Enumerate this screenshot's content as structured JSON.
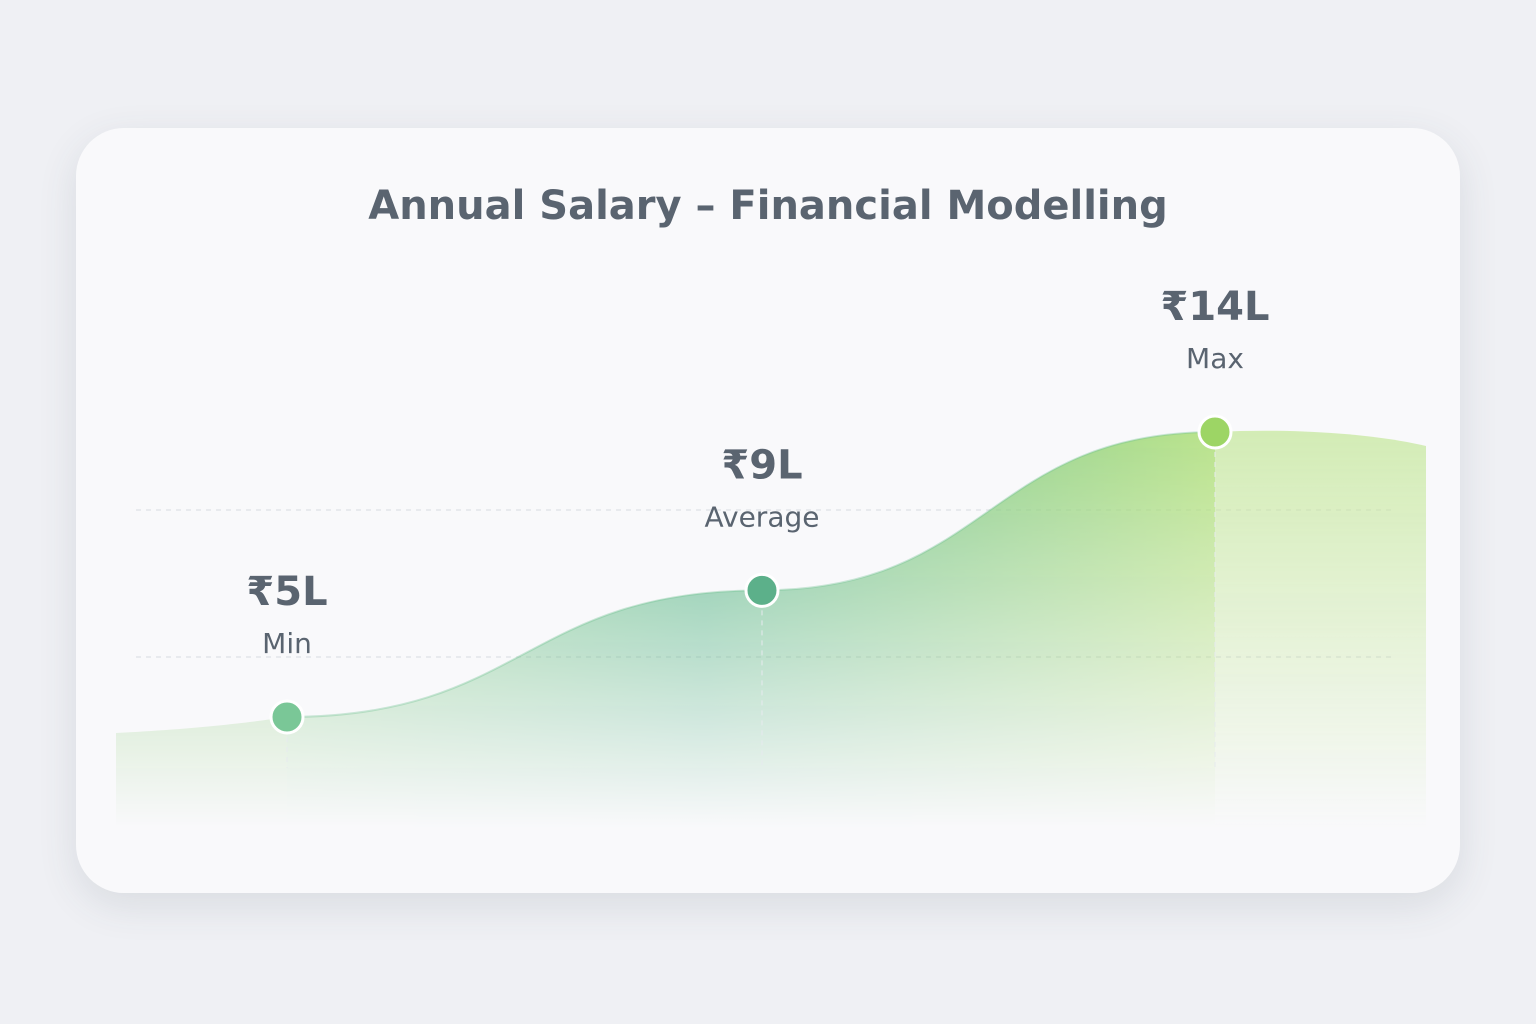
{
  "chart_data": {
    "type": "area",
    "title": "Annual Salary – Financial Modelling",
    "categories": [
      "Min",
      "Average",
      "Max"
    ],
    "values": [
      5,
      9,
      14
    ],
    "value_labels": [
      "₹5L",
      "₹9L",
      "₹14L"
    ],
    "color": "#6cc08f"
  }
}
